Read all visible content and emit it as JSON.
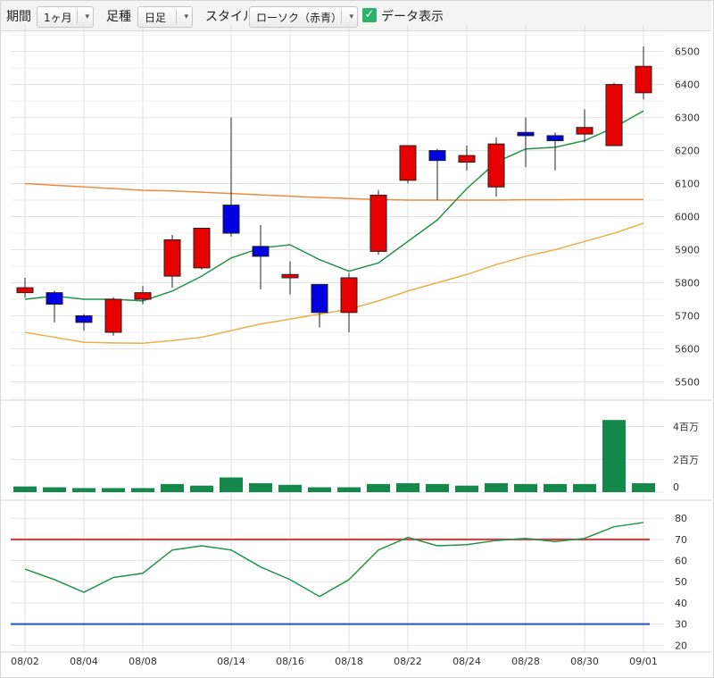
{
  "toolbar": {
    "period_label": "期間",
    "period_value": "1ヶ月",
    "foot_label": "足種",
    "foot_value": "日足",
    "style_label": "スタイル",
    "style_value": "ローソク（赤青）",
    "data_display_label": "データ表示",
    "data_display_checked": true,
    "dropdown_arrow_icon": "chevron-down-icon",
    "checkbox_icon": "checkmark-icon"
  },
  "chart_data": [
    {
      "type": "candlestick",
      "x_ticks": [
        "08/02",
        "08/04",
        "08/08",
        "08/14",
        "08/16",
        "08/18",
        "08/22",
        "08/24",
        "08/28",
        "08/30",
        "09/01"
      ],
      "y_ticks": [
        "6500",
        "6400",
        "6300",
        "6200",
        "6100",
        "6000",
        "5900",
        "5800",
        "5700",
        "5600",
        "5500"
      ],
      "ylim": [
        5450,
        6580
      ],
      "colors": {
        "up": "#e60000",
        "down": "#0000e0",
        "ma_short": "#23924a",
        "ma_mid": "#e8b048",
        "ma_long": "#f08a3c"
      },
      "candles": [
        {
          "o": 5770,
          "h": 5815,
          "l": 5755,
          "c": 5785
        },
        {
          "o": 5770,
          "h": 5775,
          "l": 5680,
          "c": 5735
        },
        {
          "o": 5700,
          "h": 5705,
          "l": 5655,
          "c": 5680
        },
        {
          "o": 5650,
          "h": 5755,
          "l": 5640,
          "c": 5750
        },
        {
          "o": 5750,
          "h": 5790,
          "l": 5735,
          "c": 5770
        },
        {
          "o": 5820,
          "h": 5945,
          "l": 5785,
          "c": 5930
        },
        {
          "o": 5845,
          "h": 5965,
          "l": 5840,
          "c": 5965
        },
        {
          "o": 6035,
          "h": 6300,
          "l": 5940,
          "c": 5950
        },
        {
          "o": 5910,
          "h": 5975,
          "l": 5780,
          "c": 5880
        },
        {
          "o": 5815,
          "h": 5865,
          "l": 5765,
          "c": 5825
        },
        {
          "o": 5795,
          "h": 5795,
          "l": 5665,
          "c": 5710
        },
        {
          "o": 5710,
          "h": 5830,
          "l": 5650,
          "c": 5815
        },
        {
          "o": 5895,
          "h": 6080,
          "l": 5885,
          "c": 6065
        },
        {
          "o": 6110,
          "h": 6215,
          "l": 6100,
          "c": 6215
        },
        {
          "o": 6200,
          "h": 6205,
          "l": 6050,
          "c": 6170
        },
        {
          "o": 6165,
          "h": 6215,
          "l": 6140,
          "c": 6185
        },
        {
          "o": 6090,
          "h": 6240,
          "l": 6060,
          "c": 6220
        },
        {
          "o": 6255,
          "h": 6300,
          "l": 6150,
          "c": 6245
        },
        {
          "o": 6245,
          "h": 6255,
          "l": 6140,
          "c": 6230
        },
        {
          "o": 6250,
          "h": 6325,
          "l": 6225,
          "c": 6270
        },
        {
          "o": 6215,
          "h": 6405,
          "l": 6215,
          "c": 6400
        },
        {
          "o": 6375,
          "h": 6515,
          "l": 6355,
          "c": 6455
        }
      ],
      "ma_short": [
        5750,
        5760,
        5750,
        5750,
        5745,
        5775,
        5820,
        5875,
        5905,
        5915,
        5870,
        5835,
        5860,
        5925,
        5990,
        6085,
        6165,
        6205,
        6210,
        6230,
        6270,
        6320
      ],
      "ma_mid": [
        5650,
        5635,
        5620,
        5618,
        5617,
        5625,
        5635,
        5655,
        5675,
        5690,
        5705,
        5720,
        5745,
        5775,
        5800,
        5825,
        5855,
        5880,
        5900,
        5925,
        5950,
        5980
      ],
      "ma_long": [
        6100,
        6095,
        6090,
        6085,
        6080,
        6078,
        6074,
        6070,
        6066,
        6062,
        6058,
        6055,
        6052,
        6050,
        6050,
        6050,
        6050,
        6051,
        6051,
        6052,
        6052,
        6052
      ]
    },
    {
      "type": "bar",
      "y_ticks": [
        "4百万",
        "2百万",
        "0"
      ],
      "ylim": [
        0,
        5500000
      ],
      "color": "#15894b",
      "values": [
        350000,
        300000,
        250000,
        250000,
        250000,
        500000,
        400000,
        900000,
        550000,
        450000,
        300000,
        300000,
        500000,
        550000,
        500000,
        400000,
        550000,
        500000,
        500000,
        500000,
        4400000,
        550000
      ]
    },
    {
      "type": "line",
      "y_ticks": [
        "80",
        "70",
        "60",
        "50",
        "40",
        "30",
        "20"
      ],
      "ylim": [
        18,
        86
      ],
      "colors": {
        "line": "#23924a",
        "upper": "#dd3333",
        "lower": "#2255bb"
      },
      "upper_line": 70,
      "lower_line": 30,
      "values": [
        56,
        51,
        45,
        52,
        54,
        65,
        67,
        65,
        57,
        51,
        43,
        51,
        65,
        71,
        67,
        67.5,
        69.5,
        70.5,
        69,
        70.5,
        76,
        78
      ]
    }
  ]
}
